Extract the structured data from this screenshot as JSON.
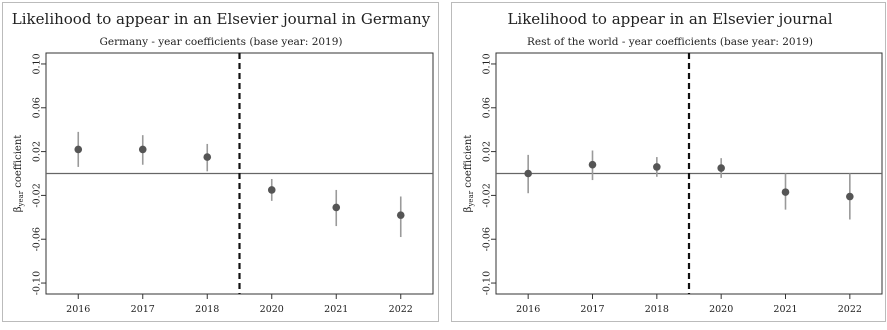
{
  "chart_data": [
    {
      "type": "scatter",
      "title": "Likelihood to appear in an Elsevier journal in Germany",
      "subtitle": "Germany - year coefficients (base year: 2019)",
      "ylabel": "β_year coefficient",
      "ylabel_main": "β",
      "ylabel_sub": "year",
      "ylabel_rest": " coefficient",
      "categories": [
        "2016",
        "2017",
        "2018",
        "2020",
        "2021",
        "2022"
      ],
      "yticks": [
        "0.10",
        "0.06",
        "0.02",
        "-0.02",
        "-0.06",
        "-0.10"
      ],
      "ytick_values": [
        0.1,
        0.06,
        0.02,
        -0.02,
        -0.06,
        -0.1
      ],
      "ylim": [
        -0.11,
        0.11
      ],
      "values": [
        0.022,
        0.022,
        0.015,
        -0.015,
        -0.031,
        -0.038
      ],
      "ci_low": [
        0.006,
        0.008,
        0.002,
        -0.025,
        -0.048,
        -0.058
      ],
      "ci_high": [
        0.038,
        0.035,
        0.027,
        -0.005,
        -0.015,
        -0.021
      ],
      "reference_line_y": 0,
      "vertical_line_after_index": 2,
      "grid": false
    },
    {
      "type": "scatter",
      "title": "Likelihood to appear in an Elsevier journal",
      "subtitle": "Rest of the world - year coefficients (base year: 2019)",
      "ylabel": "β_year coefficient",
      "ylabel_main": "β",
      "ylabel_sub": "year",
      "ylabel_rest": " coefficient",
      "categories": [
        "2016",
        "2017",
        "2018",
        "2020",
        "2021",
        "2022"
      ],
      "yticks": [
        "0.10",
        "0.06",
        "0.02",
        "-0.02",
        "-0.06",
        "-0.10"
      ],
      "ytick_values": [
        0.1,
        0.06,
        0.02,
        -0.02,
        -0.06,
        -0.1
      ],
      "ylim": [
        -0.11,
        0.11
      ],
      "values": [
        0.0,
        0.008,
        0.006,
        0.005,
        -0.017,
        -0.021
      ],
      "ci_low": [
        -0.018,
        -0.006,
        -0.003,
        -0.004,
        -0.033,
        -0.042
      ],
      "ci_high": [
        0.017,
        0.021,
        0.015,
        0.014,
        0.0,
        0.0
      ],
      "reference_line_y": 0,
      "vertical_line_after_index": 2,
      "grid": false
    }
  ],
  "colors": {
    "point": "#555555",
    "ci_line": "#9a9a9a",
    "axis": "#333333",
    "frame": "#bbbbbb"
  }
}
